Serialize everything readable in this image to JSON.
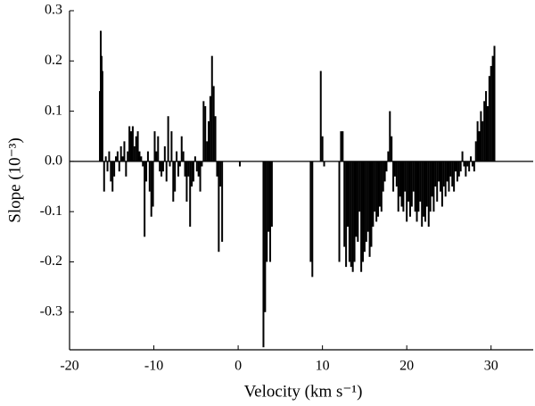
{
  "chart_data": {
    "type": "bar",
    "xlabel": "Velocity (km s⁻¹)",
    "ylabel": "Slope (10⁻³)",
    "color": "#000000",
    "xlim": [
      -20,
      35
    ],
    "xticks": [
      -20,
      -10,
      0,
      10,
      20,
      30
    ],
    "ylim": [
      -0.375,
      0.3
    ],
    "yticks": [
      0.3,
      0.2,
      0.1,
      {
        "value": 0,
        "label": "0.0"
      },
      -0.1,
      -0.2,
      -0.3
    ],
    "x": [
      -16.4,
      -16.3,
      -16.2,
      -16.1,
      -15.9,
      -15.7,
      -15.5,
      -15.3,
      -15.1,
      -14.9,
      -14.7,
      -14.5,
      -14.3,
      -14.1,
      -13.9,
      -13.7,
      -13.5,
      -13.3,
      -13.1,
      -12.9,
      -12.7,
      -12.5,
      -12.3,
      -12.1,
      -11.9,
      -11.7,
      -11.5,
      -11.3,
      -11.1,
      -10.9,
      -10.7,
      -10.5,
      -10.3,
      -10.1,
      -9.9,
      -9.7,
      -9.5,
      -9.3,
      -9.1,
      -8.9,
      -8.7,
      -8.5,
      -8.3,
      -8.1,
      -7.9,
      -7.7,
      -7.5,
      -7.3,
      -7.1,
      -6.9,
      -6.7,
      -6.5,
      -6.3,
      -6.1,
      -5.9,
      -5.7,
      -5.5,
      -5.3,
      -5.1,
      -4.9,
      -4.7,
      -4.5,
      -4.3,
      -4.1,
      -3.9,
      -3.7,
      -3.5,
      -3.3,
      -3.1,
      -2.9,
      -2.7,
      -2.5,
      -2.3,
      -2.1,
      -1.9,
      0.2,
      3.0,
      3.2,
      3.4,
      3.6,
      3.8,
      4.0,
      8.6,
      8.8,
      9.8,
      10.0,
      10.2,
      12.0,
      12.2,
      12.4,
      12.6,
      12.8,
      13.0,
      13.2,
      13.4,
      13.6,
      13.8,
      14.0,
      14.2,
      14.4,
      14.6,
      14.8,
      15.0,
      15.2,
      15.4,
      15.6,
      15.8,
      16.0,
      16.2,
      16.4,
      16.6,
      16.8,
      17.0,
      17.2,
      17.4,
      17.6,
      17.8,
      18.0,
      18.2,
      18.4,
      18.6,
      18.8,
      19.0,
      19.2,
      19.4,
      19.6,
      19.8,
      20.0,
      20.2,
      20.4,
      20.6,
      20.8,
      21.0,
      21.2,
      21.4,
      21.6,
      21.8,
      22.0,
      22.2,
      22.4,
      22.6,
      22.8,
      23.0,
      23.2,
      23.4,
      23.6,
      23.8,
      24.0,
      24.2,
      24.4,
      24.6,
      24.8,
      25.0,
      25.2,
      25.4,
      25.6,
      25.8,
      26.0,
      26.2,
      26.4,
      26.6,
      26.8,
      27.0,
      27.2,
      27.4,
      27.6,
      27.8,
      28.0,
      28.2,
      28.4,
      28.6,
      28.8,
      29.0,
      29.2,
      29.4,
      29.6,
      29.8,
      30.0,
      30.2,
      30.4
    ],
    "values": [
      0.14,
      0.26,
      0.21,
      0.18,
      -0.06,
      0.01,
      -0.02,
      0.02,
      -0.04,
      -0.06,
      -0.03,
      0.01,
      0.02,
      -0.02,
      0.03,
      0.01,
      0.04,
      -0.03,
      0.02,
      0.07,
      0.06,
      0.07,
      0.03,
      0.05,
      0.06,
      0.02,
      0.01,
      -0.01,
      -0.15,
      -0.04,
      0.02,
      -0.06,
      -0.11,
      -0.09,
      0.06,
      0.02,
      0.05,
      -0.02,
      -0.03,
      -0.02,
      0.03,
      -0.04,
      0.09,
      -0.01,
      0.06,
      -0.08,
      -0.06,
      0.02,
      -0.03,
      -0.01,
      0.05,
      0.02,
      -0.03,
      -0.08,
      -0.03,
      -0.13,
      -0.05,
      -0.04,
      0.01,
      -0.02,
      -0.03,
      -0.06,
      -0.01,
      0.12,
      0.11,
      0.04,
      0.08,
      0.13,
      0.21,
      0.15,
      0.09,
      -0.03,
      -0.18,
      -0.05,
      -0.16,
      -0.01,
      -0.37,
      -0.3,
      -0.2,
      -0.14,
      -0.2,
      -0.13,
      -0.2,
      -0.23,
      0.18,
      0.05,
      -0.01,
      -0.2,
      0.06,
      0.06,
      -0.17,
      -0.21,
      -0.13,
      -0.2,
      -0.21,
      -0.22,
      -0.2,
      -0.15,
      -0.16,
      -0.1,
      -0.22,
      -0.2,
      -0.18,
      -0.16,
      -0.14,
      -0.19,
      -0.17,
      -0.13,
      -0.1,
      -0.12,
      -0.11,
      -0.09,
      -0.1,
      -0.06,
      -0.04,
      -0.02,
      0.02,
      0.1,
      0.05,
      -0.06,
      -0.03,
      -0.05,
      -0.1,
      -0.07,
      -0.09,
      -0.1,
      -0.06,
      -0.12,
      -0.08,
      -0.11,
      -0.09,
      -0.06,
      -0.1,
      -0.12,
      -0.1,
      -0.08,
      -0.13,
      -0.11,
      -0.12,
      -0.09,
      -0.13,
      -0.1,
      -0.07,
      -0.1,
      -0.05,
      -0.08,
      -0.04,
      -0.06,
      -0.09,
      -0.05,
      -0.07,
      -0.04,
      -0.06,
      -0.03,
      -0.05,
      -0.06,
      -0.02,
      -0.04,
      -0.03,
      -0.02,
      0.02,
      -0.01,
      -0.03,
      -0.01,
      -0.02,
      0.01,
      -0.01,
      -0.02,
      0.04,
      0.08,
      0.06,
      0.1,
      0.08,
      0.12,
      0.14,
      0.11,
      0.17,
      0.19,
      0.21,
      0.23
    ]
  }
}
